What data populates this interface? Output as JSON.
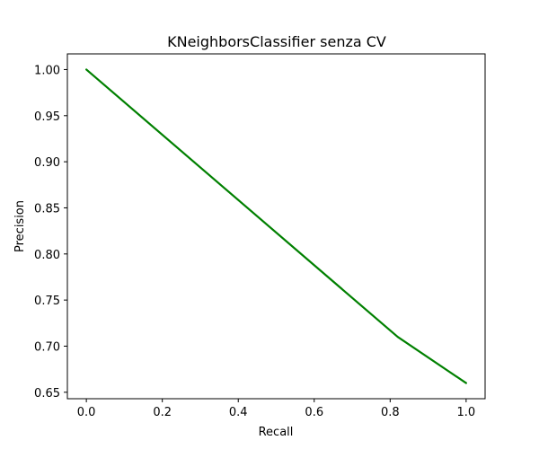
{
  "chart_data": {
    "type": "line",
    "title": "KNeighborsClassifier senza CV",
    "xlabel": "Recall",
    "ylabel": "Precision",
    "xlim": [
      -0.05,
      1.05
    ],
    "ylim": [
      0.643,
      1.017
    ],
    "x_ticks": [
      0.0,
      0.2,
      0.4,
      0.6,
      0.8,
      1.0
    ],
    "x_tick_labels": [
      "0.0",
      "0.2",
      "0.4",
      "0.6",
      "0.8",
      "1.0"
    ],
    "y_ticks": [
      0.65,
      0.7,
      0.75,
      0.8,
      0.85,
      0.9,
      0.95,
      1.0
    ],
    "y_tick_labels": [
      "0.65",
      "0.70",
      "0.75",
      "0.80",
      "0.85",
      "0.90",
      "0.95",
      "1.00"
    ],
    "grid": false,
    "series": [
      {
        "color": "#008000",
        "x": [
          0.0,
          0.82,
          1.0
        ],
        "y": [
          1.0,
          0.71,
          0.66
        ]
      }
    ]
  }
}
